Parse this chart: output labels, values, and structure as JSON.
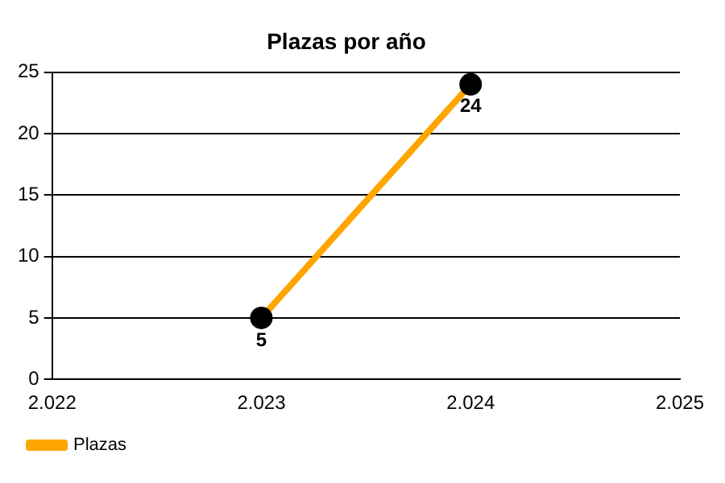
{
  "chart_data": {
    "type": "line",
    "title": "Plazas por año",
    "x": [
      2023,
      2024
    ],
    "series": [
      {
        "name": "Plazas",
        "color": "#ffa500",
        "values": [
          5,
          24
        ]
      }
    ],
    "xlim": [
      2022,
      2025
    ],
    "xticks": [
      {
        "value": 2022,
        "label": "2.022"
      },
      {
        "value": 2023,
        "label": "2.023"
      },
      {
        "value": 2024,
        "label": "2.024"
      },
      {
        "value": 2025,
        "label": "2.025"
      }
    ],
    "ylim": [
      0,
      25
    ],
    "yticks": [
      0,
      5,
      10,
      15,
      20,
      25
    ],
    "grid": "y",
    "legend": "bottom left",
    "marker": "circle",
    "line_style": "solid",
    "data_labels": true
  }
}
